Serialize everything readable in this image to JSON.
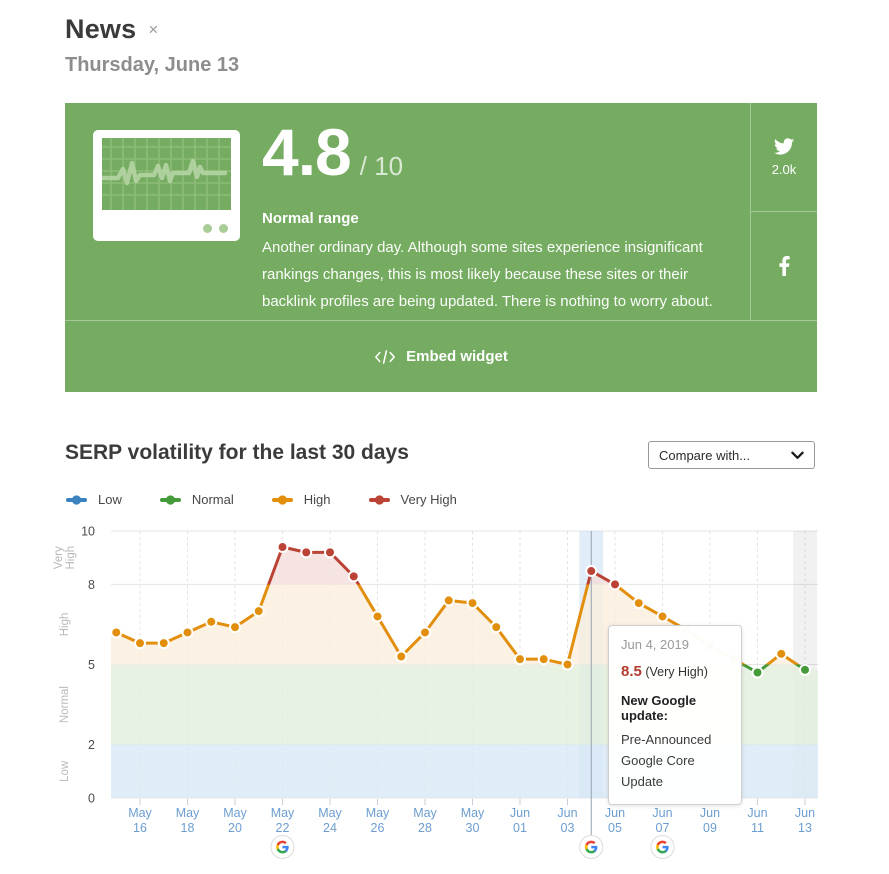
{
  "header": {
    "title": "News",
    "close": "×",
    "date": "Thursday, June 13"
  },
  "banner": {
    "background": "#76ac62",
    "score": "4.8",
    "score_max": "/ 10",
    "range_label": "Normal range",
    "description": "Another ordinary day. Although some sites experience insignificant rankings changes, this is most likely because these sites or their backlink profiles are being updated. There is nothing to worry about.",
    "twitter_count": "2.0k",
    "embed_label": "Embed widget"
  },
  "volatility": {
    "title": "SERP volatility for the last 30 days",
    "compare_placeholder": "Compare with...",
    "legend": [
      {
        "label": "Low",
        "color": "#3a82c0"
      },
      {
        "label": "Normal",
        "color": "#459b3a"
      },
      {
        "label": "High",
        "color": "#e38f0e"
      },
      {
        "label": "Very High",
        "color": "#bb4336"
      }
    ]
  },
  "chart_data": {
    "type": "line",
    "title": "SERP volatility for the last 30 days",
    "ylabel": "",
    "xlabel": "",
    "ylim": [
      0,
      10
    ],
    "yticks": [
      0,
      2,
      5,
      8,
      10
    ],
    "grid": true,
    "x": [
      "May 15",
      "May 16",
      "May 17",
      "May 18",
      "May 19",
      "May 20",
      "May 21",
      "May 22",
      "May 23",
      "May 24",
      "May 25",
      "May 26",
      "May 27",
      "May 28",
      "May 29",
      "May 30",
      "May 31",
      "Jun 01",
      "Jun 02",
      "Jun 03",
      "Jun 04",
      "Jun 05",
      "Jun 06",
      "Jun 07",
      "Jun 08",
      "Jun 09",
      "Jun 10",
      "Jun 11",
      "Jun 12",
      "Jun 13"
    ],
    "values": [
      6.2,
      5.8,
      5.8,
      6.2,
      6.6,
      6.4,
      7.0,
      9.4,
      9.2,
      9.2,
      8.3,
      6.8,
      5.3,
      6.2,
      7.4,
      7.3,
      6.4,
      5.2,
      5.2,
      5.0,
      8.5,
      8.0,
      7.3,
      6.8,
      6.3,
      5.7,
      5.2,
      4.7,
      5.4,
      4.8
    ],
    "bands": [
      {
        "label": "Low",
        "from": 0,
        "to": 2,
        "line": "#3a82c0",
        "fill": "#d9e8f5"
      },
      {
        "label": "Normal",
        "from": 2,
        "to": 5,
        "line": "#459b3a",
        "fill": "#e3efdb"
      },
      {
        "label": "High",
        "from": 5,
        "to": 8,
        "line": "#e38f0e",
        "fill": "#faeedd"
      },
      {
        "label": "Very High",
        "from": 8,
        "to": 10,
        "line": "#bb4336",
        "fill": "#f3dedb"
      }
    ],
    "xtick_indices": [
      1,
      3,
      5,
      7,
      9,
      11,
      13,
      15,
      17,
      19,
      21,
      23,
      25,
      27,
      29
    ],
    "xtick_labels": [
      [
        "May",
        "16"
      ],
      [
        "May",
        "18"
      ],
      [
        "May",
        "20"
      ],
      [
        "May",
        "22"
      ],
      [
        "May",
        "24"
      ],
      [
        "May",
        "26"
      ],
      [
        "May",
        "28"
      ],
      [
        "May",
        "30"
      ],
      [
        "Jun",
        "01"
      ],
      [
        "Jun",
        "03"
      ],
      [
        "Jun",
        "05"
      ],
      [
        "Jun",
        "07"
      ],
      [
        "Jun",
        "09"
      ],
      [
        "Jun",
        "11"
      ],
      [
        "Jun",
        "13"
      ]
    ],
    "google_update_indices": [
      7,
      20,
      23
    ],
    "selected_index": 20,
    "today_highlight_index": 29,
    "legend_position": "top-left"
  },
  "tooltip": {
    "date": "Jun 4, 2019",
    "score": "8.5",
    "score_level": " (Very High)",
    "heading": "New Google update:",
    "body": "Pre-Announced Google Core Update"
  }
}
